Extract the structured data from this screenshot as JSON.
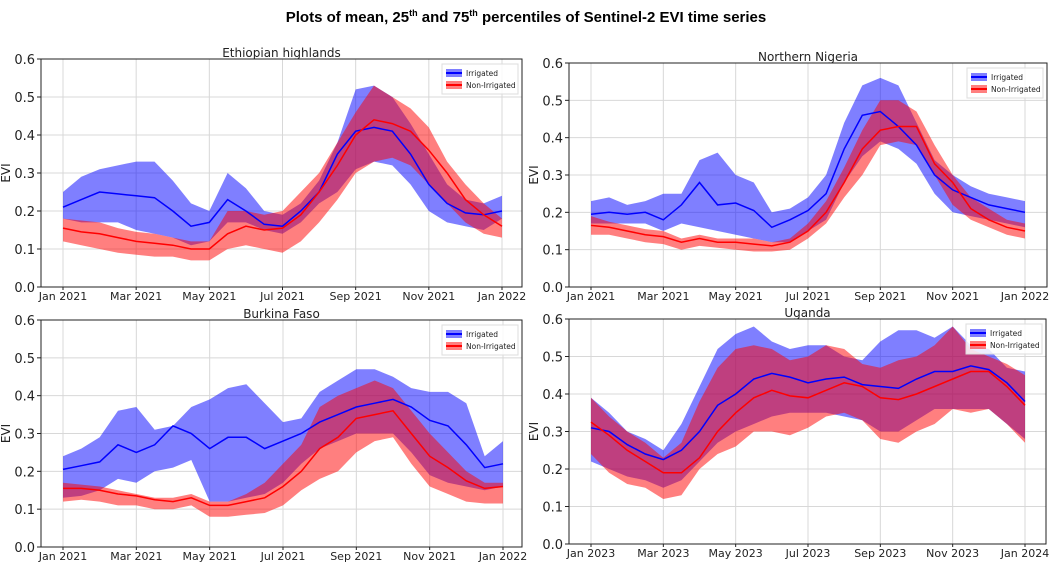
{
  "title": {
    "part1": "Plots of mean, 25",
    "sup1": "th",
    "part2": " and 75",
    "sup2": "th",
    "part3": " percentiles of Sentinel-2 EVI time series"
  },
  "colors": {
    "irrigated": "#0000ff",
    "non_irrigated": "#ff0000"
  },
  "chart_data": [
    {
      "type": "area",
      "title": "Ethiopian highlands",
      "xlabel": "",
      "ylabel": "EVI",
      "ylim": [
        0,
        0.6
      ],
      "yticks": [
        "0.0",
        "0.1",
        "0.2",
        "0.3",
        "0.4",
        "0.5",
        "0.6"
      ],
      "xticks": [
        "Jan 2021",
        "Mar 2021",
        "May 2021",
        "Jul 2021",
        "Sep 2021",
        "Nov 2021",
        "Jan 2022"
      ],
      "x_months": [
        0,
        0.5,
        1,
        1.5,
        2,
        2.5,
        3,
        3.5,
        4,
        4.5,
        5,
        5.5,
        6,
        6.5,
        7,
        7.5,
        8,
        8.5,
        9,
        9.5,
        10,
        10.5,
        11,
        11.5,
        12
      ],
      "grid": true,
      "legend": "top-right",
      "series": [
        {
          "name": "Irrigated",
          "mean": [
            0.21,
            0.23,
            0.25,
            0.245,
            0.24,
            0.235,
            0.2,
            0.16,
            0.17,
            0.23,
            0.2,
            0.165,
            0.16,
            0.2,
            0.25,
            0.35,
            0.41,
            0.42,
            0.41,
            0.35,
            0.27,
            0.22,
            0.195,
            0.19,
            0.2
          ],
          "p25": [
            0.18,
            0.17,
            0.17,
            0.17,
            0.15,
            0.14,
            0.13,
            0.11,
            0.12,
            0.17,
            0.17,
            0.15,
            0.14,
            0.17,
            0.22,
            0.25,
            0.31,
            0.33,
            0.32,
            0.27,
            0.2,
            0.17,
            0.16,
            0.15,
            0.18
          ],
          "p75": [
            0.25,
            0.29,
            0.31,
            0.32,
            0.33,
            0.33,
            0.28,
            0.22,
            0.2,
            0.3,
            0.26,
            0.2,
            0.19,
            0.22,
            0.28,
            0.38,
            0.52,
            0.53,
            0.5,
            0.43,
            0.35,
            0.27,
            0.23,
            0.22,
            0.24
          ]
        },
        {
          "name": "Non-Irrigated",
          "mean": [
            0.155,
            0.145,
            0.14,
            0.13,
            0.12,
            0.115,
            0.11,
            0.1,
            0.1,
            0.14,
            0.16,
            0.15,
            0.155,
            0.19,
            0.25,
            0.32,
            0.4,
            0.44,
            0.43,
            0.41,
            0.36,
            0.3,
            0.23,
            0.19,
            0.16
          ],
          "p25": [
            0.12,
            0.11,
            0.1,
            0.09,
            0.085,
            0.08,
            0.08,
            0.07,
            0.07,
            0.1,
            0.11,
            0.1,
            0.09,
            0.12,
            0.17,
            0.23,
            0.3,
            0.33,
            0.34,
            0.32,
            0.27,
            0.22,
            0.17,
            0.14,
            0.13
          ],
          "p75": [
            0.18,
            0.175,
            0.17,
            0.155,
            0.145,
            0.14,
            0.13,
            0.12,
            0.12,
            0.2,
            0.2,
            0.19,
            0.2,
            0.25,
            0.3,
            0.38,
            0.46,
            0.53,
            0.5,
            0.47,
            0.42,
            0.33,
            0.27,
            0.22,
            0.18
          ]
        }
      ]
    },
    {
      "type": "area",
      "title": "Northern Nigeria",
      "xlabel": "",
      "ylabel": "EVI",
      "ylim": [
        0,
        0.6
      ],
      "yticks": [
        "0.0",
        "0.1",
        "0.2",
        "0.3",
        "0.4",
        "0.5",
        "0.6"
      ],
      "xticks": [
        "Jan 2021",
        "Mar 2021",
        "May 2021",
        "Jul 2021",
        "Sep 2021",
        "Nov 2021",
        "Jan 2022"
      ],
      "x_months": [
        0,
        0.5,
        1,
        1.5,
        2,
        2.5,
        3,
        3.5,
        4,
        4.5,
        5,
        5.5,
        6,
        6.5,
        7,
        7.5,
        8,
        8.5,
        9,
        9.5,
        10,
        10.5,
        11,
        11.5,
        12
      ],
      "grid": true,
      "legend": "top-right",
      "series": [
        {
          "name": "Irrigated",
          "mean": [
            0.195,
            0.2,
            0.195,
            0.2,
            0.18,
            0.22,
            0.28,
            0.22,
            0.225,
            0.205,
            0.16,
            0.18,
            0.205,
            0.25,
            0.37,
            0.46,
            0.47,
            0.43,
            0.38,
            0.3,
            0.26,
            0.24,
            0.22,
            0.21,
            0.2
          ],
          "p25": [
            0.17,
            0.17,
            0.17,
            0.17,
            0.15,
            0.17,
            0.16,
            0.15,
            0.14,
            0.13,
            0.12,
            0.12,
            0.15,
            0.18,
            0.28,
            0.35,
            0.39,
            0.37,
            0.33,
            0.25,
            0.2,
            0.19,
            0.18,
            0.17,
            0.16
          ],
          "p75": [
            0.23,
            0.24,
            0.22,
            0.23,
            0.25,
            0.25,
            0.34,
            0.36,
            0.3,
            0.28,
            0.2,
            0.21,
            0.24,
            0.3,
            0.44,
            0.54,
            0.56,
            0.54,
            0.44,
            0.34,
            0.3,
            0.27,
            0.25,
            0.24,
            0.23
          ]
        },
        {
          "name": "Non-Irrigated",
          "mean": [
            0.165,
            0.16,
            0.15,
            0.14,
            0.135,
            0.12,
            0.13,
            0.12,
            0.12,
            0.115,
            0.11,
            0.12,
            0.15,
            0.2,
            0.28,
            0.37,
            0.42,
            0.43,
            0.43,
            0.33,
            0.28,
            0.21,
            0.18,
            0.16,
            0.15
          ],
          "p25": [
            0.14,
            0.14,
            0.13,
            0.12,
            0.115,
            0.1,
            0.11,
            0.105,
            0.1,
            0.095,
            0.095,
            0.1,
            0.13,
            0.17,
            0.24,
            0.3,
            0.38,
            0.39,
            0.38,
            0.3,
            0.22,
            0.18,
            0.16,
            0.14,
            0.13
          ],
          "p75": [
            0.19,
            0.175,
            0.165,
            0.155,
            0.15,
            0.13,
            0.14,
            0.13,
            0.13,
            0.13,
            0.12,
            0.13,
            0.17,
            0.23,
            0.32,
            0.42,
            0.5,
            0.5,
            0.47,
            0.38,
            0.3,
            0.24,
            0.21,
            0.18,
            0.17
          ]
        }
      ]
    },
    {
      "type": "area",
      "title": "Burkina Faso",
      "xlabel": "",
      "ylabel": "EVI",
      "ylim": [
        0,
        0.6
      ],
      "yticks": [
        "0.0",
        "0.1",
        "0.2",
        "0.3",
        "0.4",
        "0.5",
        "0.6"
      ],
      "xticks": [
        "Jan 2021",
        "Mar 2021",
        "May 2021",
        "Jul 2021",
        "Sep 2021",
        "Nov 2021",
        "Jan 2022"
      ],
      "x_months": [
        0,
        0.5,
        1,
        1.5,
        2,
        2.5,
        3,
        3.5,
        4,
        4.5,
        5,
        5.5,
        6,
        6.5,
        7,
        7.5,
        8,
        8.5,
        9,
        9.5,
        10,
        10.5,
        11,
        11.5,
        12
      ],
      "grid": true,
      "legend": "top-right",
      "series": [
        {
          "name": "Irrigated",
          "mean": [
            0.205,
            0.215,
            0.225,
            0.27,
            0.25,
            0.27,
            0.32,
            0.3,
            0.26,
            0.29,
            0.29,
            0.26,
            0.28,
            0.3,
            0.33,
            0.35,
            0.37,
            0.38,
            0.39,
            0.37,
            0.335,
            0.32,
            0.27,
            0.21,
            0.22
          ],
          "p25": [
            0.13,
            0.135,
            0.15,
            0.18,
            0.17,
            0.2,
            0.21,
            0.23,
            0.12,
            0.12,
            0.13,
            0.14,
            0.17,
            0.22,
            0.26,
            0.28,
            0.3,
            0.3,
            0.3,
            0.25,
            0.19,
            0.17,
            0.16,
            0.15,
            0.16
          ],
          "p75": [
            0.24,
            0.26,
            0.29,
            0.36,
            0.37,
            0.31,
            0.32,
            0.37,
            0.39,
            0.42,
            0.43,
            0.38,
            0.33,
            0.34,
            0.41,
            0.44,
            0.47,
            0.47,
            0.45,
            0.42,
            0.41,
            0.41,
            0.38,
            0.24,
            0.28
          ]
        },
        {
          "name": "Non-Irrigated",
          "mean": [
            0.155,
            0.155,
            0.15,
            0.14,
            0.135,
            0.125,
            0.12,
            0.13,
            0.11,
            0.11,
            0.12,
            0.13,
            0.16,
            0.2,
            0.26,
            0.29,
            0.34,
            0.35,
            0.36,
            0.3,
            0.24,
            0.21,
            0.175,
            0.155,
            0.16
          ],
          "p25": [
            0.12,
            0.125,
            0.12,
            0.11,
            0.11,
            0.1,
            0.1,
            0.11,
            0.08,
            0.08,
            0.085,
            0.09,
            0.11,
            0.15,
            0.18,
            0.2,
            0.25,
            0.28,
            0.29,
            0.22,
            0.16,
            0.14,
            0.12,
            0.115,
            0.115
          ],
          "p75": [
            0.17,
            0.165,
            0.16,
            0.15,
            0.14,
            0.13,
            0.13,
            0.14,
            0.12,
            0.12,
            0.14,
            0.17,
            0.22,
            0.27,
            0.37,
            0.4,
            0.42,
            0.44,
            0.42,
            0.36,
            0.3,
            0.25,
            0.2,
            0.17,
            0.17
          ]
        }
      ]
    },
    {
      "type": "area",
      "title": "Uganda",
      "xlabel": "",
      "ylabel": "EVI",
      "ylim": [
        0,
        0.6
      ],
      "yticks": [
        "0.0",
        "0.1",
        "0.2",
        "0.3",
        "0.4",
        "0.5",
        "0.6"
      ],
      "xticks": [
        "Jan 2023",
        "Mar 2023",
        "May 2023",
        "Jul 2023",
        "Sep 2023",
        "Nov 2023",
        "Jan 2024"
      ],
      "x_months": [
        0,
        0.5,
        1,
        1.5,
        2,
        2.5,
        3,
        3.5,
        4,
        4.5,
        5,
        5.5,
        6,
        6.5,
        7,
        7.5,
        8,
        8.5,
        9,
        9.5,
        10,
        10.5,
        11,
        11.5,
        12
      ],
      "grid": true,
      "legend": "top-right",
      "series": [
        {
          "name": "Irrigated",
          "mean": [
            0.31,
            0.3,
            0.265,
            0.24,
            0.225,
            0.25,
            0.3,
            0.37,
            0.4,
            0.44,
            0.455,
            0.445,
            0.43,
            0.44,
            0.445,
            0.425,
            0.42,
            0.415,
            0.44,
            0.46,
            0.46,
            0.475,
            0.465,
            0.43,
            0.38
          ],
          "p25": [
            0.22,
            0.2,
            0.18,
            0.17,
            0.15,
            0.17,
            0.22,
            0.27,
            0.3,
            0.32,
            0.34,
            0.35,
            0.35,
            0.35,
            0.34,
            0.33,
            0.3,
            0.3,
            0.33,
            0.36,
            0.36,
            0.36,
            0.36,
            0.32,
            0.28
          ],
          "p75": [
            0.39,
            0.35,
            0.3,
            0.28,
            0.25,
            0.32,
            0.42,
            0.52,
            0.56,
            0.58,
            0.54,
            0.52,
            0.53,
            0.53,
            0.5,
            0.49,
            0.54,
            0.57,
            0.57,
            0.55,
            0.58,
            0.53,
            0.52,
            0.47,
            0.46
          ]
        },
        {
          "name": "Non-Irrigated",
          "mean": [
            0.325,
            0.29,
            0.25,
            0.22,
            0.19,
            0.19,
            0.23,
            0.3,
            0.35,
            0.39,
            0.41,
            0.395,
            0.39,
            0.41,
            0.43,
            0.42,
            0.39,
            0.385,
            0.4,
            0.42,
            0.44,
            0.46,
            0.46,
            0.42,
            0.37
          ],
          "p25": [
            0.24,
            0.19,
            0.16,
            0.15,
            0.12,
            0.13,
            0.2,
            0.24,
            0.26,
            0.3,
            0.3,
            0.29,
            0.31,
            0.34,
            0.35,
            0.33,
            0.28,
            0.27,
            0.3,
            0.32,
            0.36,
            0.35,
            0.36,
            0.32,
            0.27
          ],
          "p75": [
            0.39,
            0.34,
            0.3,
            0.27,
            0.23,
            0.27,
            0.38,
            0.47,
            0.52,
            0.53,
            0.52,
            0.49,
            0.5,
            0.53,
            0.52,
            0.48,
            0.47,
            0.49,
            0.5,
            0.53,
            0.58,
            0.52,
            0.5,
            0.48,
            0.45
          ]
        }
      ]
    }
  ]
}
